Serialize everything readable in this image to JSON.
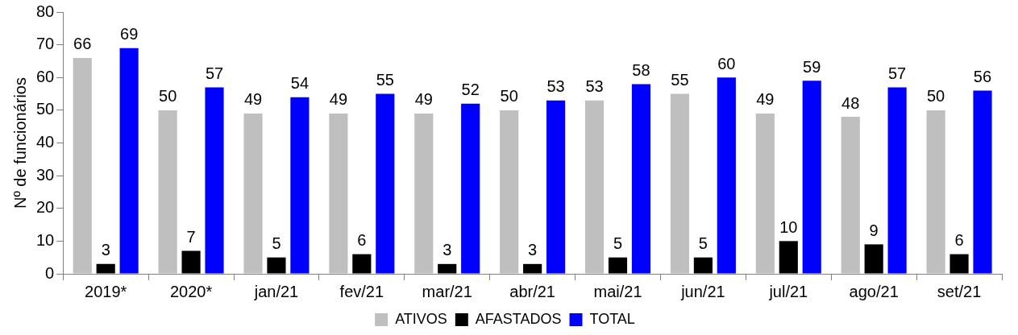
{
  "chart_data": {
    "type": "bar",
    "ylabel": "Nº de funcionários",
    "categories": [
      "2019*",
      "2020*",
      "jan/21",
      "fev/21",
      "mar/21",
      "abr/21",
      "mai/21",
      "jun/21",
      "jul/21",
      "ago/21",
      "set/21"
    ],
    "series": [
      {
        "name": "ATIVOS",
        "color": "#bfbfbf",
        "values": [
          66,
          50,
          49,
          49,
          49,
          50,
          53,
          55,
          49,
          48,
          50
        ]
      },
      {
        "name": "AFASTADOS",
        "color": "#000000",
        "values": [
          3,
          7,
          5,
          6,
          3,
          3,
          5,
          5,
          10,
          9,
          6
        ]
      },
      {
        "name": "TOTAL",
        "color": "#0000ff",
        "values": [
          69,
          57,
          54,
          55,
          52,
          53,
          58,
          60,
          59,
          57,
          56
        ]
      }
    ],
    "ylim": [
      0,
      80
    ],
    "yticks": [
      0,
      10,
      20,
      30,
      40,
      50,
      60,
      70,
      80
    ],
    "grid": false,
    "legend": "bottom",
    "data_labels": true
  }
}
